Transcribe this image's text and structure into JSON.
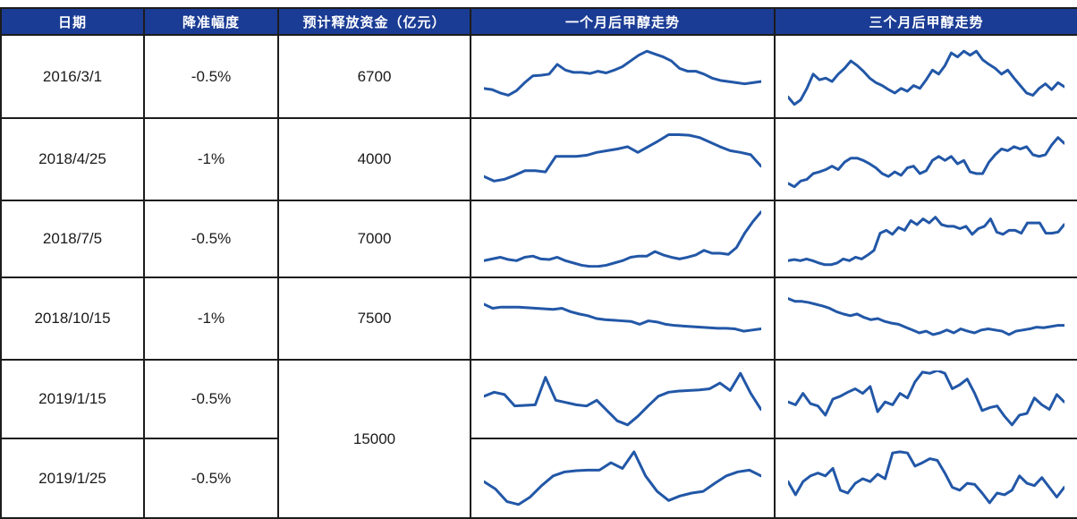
{
  "colors": {
    "header_bg": "#1b3c94",
    "header_text": "#ffffff",
    "line": "#2257a7",
    "border": "#1c1c1c"
  },
  "table": {
    "headers": [
      {
        "label": "日期"
      },
      {
        "label": "降准幅度"
      },
      {
        "label": "预计释放资金（亿元）"
      },
      {
        "label": "一个月后甲醇走势"
      },
      {
        "label": "三个月后甲醇走势"
      }
    ],
    "rows": [
      {
        "date": "2016/3/1",
        "cut": "-0.5%",
        "funds": "6700"
      },
      {
        "date": "2018/4/25",
        "cut": "-1%",
        "funds": "4000"
      },
      {
        "date": "2018/7/5",
        "cut": "-0.5%",
        "funds": "7000"
      },
      {
        "date": "2018/10/15",
        "cut": "-1%",
        "funds": "7500"
      },
      {
        "date": "2019/1/15",
        "cut": "-0.5%",
        "funds": "15000"
      },
      {
        "date": "2019/1/25",
        "cut": "-0.5%",
        "funds": "15000"
      }
    ],
    "merged_funds": "15000",
    "merged_funds_rows": [
      "2019/1/15",
      "2019/1/25"
    ]
  },
  "chart_data": [
    {
      "type": "line",
      "row": "2016/3/1",
      "axes": "hidden",
      "ylim": [
        0,
        100
      ],
      "series": [
        {
          "name": "一个月后甲醇走势",
          "values": [
            30,
            28,
            22,
            18,
            26,
            40,
            52,
            53,
            55,
            72,
            62,
            58,
            58,
            56,
            60,
            57,
            62,
            68,
            78,
            88,
            95,
            90,
            85,
            78,
            65,
            60,
            60,
            55,
            48,
            44,
            42,
            40,
            38,
            40,
            42
          ]
        },
        {
          "name": "三个月后甲醇走势",
          "values": [
            15,
            2,
            10,
            30,
            55,
            45,
            48,
            42,
            55,
            65,
            78,
            70,
            60,
            48,
            40,
            35,
            28,
            22,
            30,
            25,
            35,
            30,
            45,
            62,
            55,
            70,
            92,
            85,
            95,
            88,
            95,
            80,
            72,
            65,
            55,
            62,
            48,
            35,
            22,
            18,
            30,
            38,
            28,
            40,
            33
          ]
        }
      ]
    },
    {
      "type": "line",
      "row": "2018/4/25",
      "axes": "hidden",
      "ylim": [
        0,
        100
      ],
      "series": [
        {
          "name": "一个月后甲醇走势",
          "values": [
            20,
            12,
            15,
            22,
            30,
            30,
            28,
            55,
            55,
            55,
            57,
            62,
            65,
            68,
            72,
            62,
            72,
            82,
            93,
            93,
            92,
            88,
            80,
            72,
            65,
            62,
            58,
            38
          ]
        },
        {
          "name": "三个月后甲醇走势",
          "values": [
            8,
            2,
            12,
            15,
            25,
            28,
            32,
            38,
            32,
            45,
            52,
            52,
            48,
            42,
            35,
            25,
            20,
            28,
            22,
            35,
            38,
            25,
            30,
            48,
            55,
            48,
            55,
            42,
            48,
            28,
            25,
            25,
            45,
            58,
            68,
            65,
            72,
            68,
            72,
            58,
            55,
            58,
            75,
            88,
            78
          ]
        }
      ]
    },
    {
      "type": "line",
      "row": "2018/7/5",
      "axes": "hidden",
      "ylim": [
        0,
        100
      ],
      "series": [
        {
          "name": "一个月后甲醇走势",
          "values": [
            12,
            15,
            18,
            14,
            12,
            18,
            20,
            15,
            14,
            18,
            12,
            8,
            4,
            2,
            2,
            4,
            8,
            12,
            18,
            20,
            20,
            28,
            22,
            18,
            15,
            18,
            22,
            30,
            25,
            25,
            23,
            35,
            60,
            80,
            97
          ]
        },
        {
          "name": "三个月后甲醇走势",
          "values": [
            12,
            14,
            12,
            15,
            12,
            8,
            5,
            5,
            8,
            15,
            12,
            18,
            15,
            22,
            30,
            60,
            65,
            58,
            70,
            65,
            82,
            75,
            85,
            78,
            88,
            75,
            72,
            72,
            68,
            72,
            58,
            68,
            72,
            85,
            62,
            58,
            65,
            65,
            60,
            78,
            78,
            78,
            60,
            60,
            62,
            75
          ]
        }
      ]
    },
    {
      "type": "line",
      "row": "2018/10/15",
      "axes": "hidden",
      "ylim": [
        0,
        100
      ],
      "series": [
        {
          "name": "一个月后甲醇走势",
          "values": [
            75,
            68,
            70,
            70,
            70,
            69,
            68,
            67,
            66,
            68,
            62,
            58,
            55,
            50,
            48,
            47,
            46,
            45,
            40,
            46,
            44,
            40,
            38,
            37,
            36,
            35,
            34,
            33,
            33,
            32,
            28,
            30,
            32
          ]
        },
        {
          "name": "三个月后甲醇走势",
          "values": [
            85,
            80,
            80,
            78,
            75,
            72,
            68,
            62,
            58,
            55,
            58,
            52,
            48,
            50,
            45,
            42,
            40,
            35,
            30,
            25,
            28,
            22,
            25,
            30,
            25,
            32,
            28,
            25,
            30,
            32,
            30,
            28,
            22,
            28,
            30,
            32,
            35,
            34,
            36,
            38,
            38
          ]
        }
      ]
    },
    {
      "type": "line",
      "row": "2019/1/15",
      "axes": "hidden",
      "ylim": [
        0,
        100
      ],
      "series": [
        {
          "name": "一个月后甲醇走势",
          "values": [
            55,
            62,
            58,
            38,
            39,
            40,
            88,
            48,
            44,
            40,
            38,
            48,
            30,
            12,
            5,
            20,
            38,
            55,
            62,
            64,
            65,
            66,
            68,
            78,
            65,
            95,
            60,
            32
          ]
        },
        {
          "name": "三个月后甲醇走势",
          "values": [
            45,
            40,
            60,
            42,
            38,
            22,
            50,
            55,
            62,
            68,
            60,
            72,
            28,
            45,
            40,
            60,
            52,
            80,
            97,
            95,
            100,
            95,
            68,
            75,
            85,
            60,
            30,
            35,
            38,
            20,
            5,
            22,
            25,
            52,
            40,
            32,
            58,
            45
          ]
        }
      ]
    },
    {
      "type": "line",
      "row": "2019/1/25",
      "axes": "hidden",
      "ylim": [
        0,
        100
      ],
      "series": [
        {
          "name": "一个月后甲醇走势",
          "values": [
            45,
            32,
            10,
            5,
            18,
            38,
            55,
            62,
            64,
            65,
            65,
            78,
            68,
            97,
            55,
            28,
            12,
            20,
            25,
            28,
            42,
            55,
            62,
            65,
            55
          ]
        },
        {
          "name": "三个月后甲醇走势",
          "values": [
            45,
            22,
            45,
            55,
            60,
            55,
            68,
            30,
            25,
            42,
            50,
            45,
            58,
            50,
            95,
            97,
            95,
            72,
            78,
            85,
            82,
            60,
            35,
            30,
            42,
            40,
            25,
            8,
            25,
            22,
            30,
            55,
            42,
            38,
            52,
            35,
            18,
            35
          ]
        }
      ]
    }
  ]
}
